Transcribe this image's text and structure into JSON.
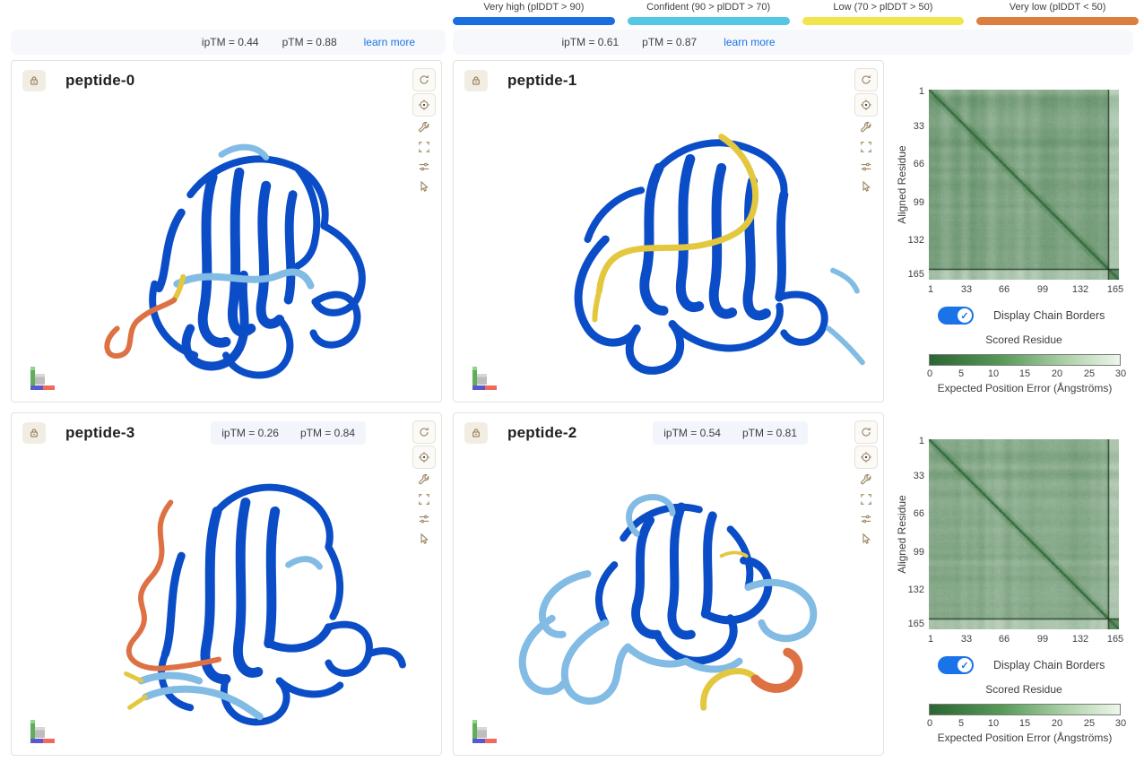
{
  "colors": {
    "plddt_very_high": "#1a6ee0",
    "plddt_confident": "#55c6e4",
    "plddt_low": "#f2e44d",
    "plddt_very_low": "#dd7e41",
    "ribbon_dark": "#0b4dc7",
    "ribbon_light": "#82bbe4",
    "ribbon_orange": "#dd7143",
    "ribbon_yellow": "#e3c83f",
    "link_blue": "#1a73e8",
    "toggle_blue": "#1a73e8",
    "icon_tan": "#9b8763",
    "pae_dark_green": "#2b6633",
    "pae_light_green": "#eef6ec"
  },
  "legend": {
    "items": [
      {
        "label": "Very high (plDDT > 90)",
        "color": "#1a6ee0"
      },
      {
        "label": "Confident (90 > plDDT > 70)",
        "color": "#55c6e4"
      },
      {
        "label": "Low (70 > plDDT > 50)",
        "color": "#f2e44d"
      },
      {
        "label": "Very low (plDDT < 50)",
        "color": "#dd7e41"
      }
    ]
  },
  "score_bars": [
    {
      "iptm": "ipTM = 0.44",
      "ptm": "pTM = 0.88",
      "link": "learn more"
    },
    {
      "iptm": "ipTM = 0.61",
      "ptm": "pTM = 0.87",
      "link": "learn more"
    }
  ],
  "panels": [
    {
      "title": "peptide-0"
    },
    {
      "title": "peptide-1"
    },
    {
      "title": "peptide-3",
      "iptm": "ipTM = 0.26",
      "ptm": "pTM = 0.84"
    },
    {
      "title": "peptide-2",
      "iptm": "ipTM = 0.54",
      "ptm": "pTM = 0.81"
    }
  ],
  "icons": {
    "lock": "lock glyph (tan), panel pin/lock chip",
    "reset_view": "circular-arrows refresh",
    "center_view": "circle with center dot",
    "wrench": "wrench tool",
    "fullscreen": "corner brackets expand",
    "sliders": "settings sliders rows",
    "pointer": "selection cursor arrow",
    "toggle_check": "✓"
  },
  "pae": {
    "ylabel": "Aligned Residue",
    "xlabel": "Scored Residue",
    "toggle_label": "Display Chain Borders",
    "toggle_on": true,
    "axis_ticks": [
      "1",
      "33",
      "66",
      "99",
      "132",
      "165"
    ],
    "colorbar_ticks": [
      "0",
      "5",
      "10",
      "15",
      "20",
      "25",
      "30"
    ],
    "colorbar_label": "Expected Position Error (Ångströms)"
  },
  "chart_data": [
    {
      "type": "heatmap",
      "position": "top-right",
      "title": "Predicted Aligned Error matrix",
      "xlabel": "Scored Residue",
      "ylabel": "Aligned Residue",
      "n_residues": 165,
      "x_ticks": [
        1,
        33,
        66,
        99,
        132,
        165
      ],
      "y_ticks": [
        1,
        33,
        66,
        99,
        132,
        165
      ],
      "value_label": "Expected Position Error (Ångströms)",
      "value_range": [
        0,
        30
      ],
      "colormap": "dark green (0 Å) → pale green (30 Å)",
      "chain_border_residue": 155,
      "display_chain_borders": true,
      "pattern": "mostly low error ~4-10 Å (mid/dark green) over protein residues 1-155 with a near-zero dark diagonal; lighter horizontal/vertical streaks around residues ~10, ~42, ~118, ~132; pale high-error band ~15-27 Å for peptide residues 156-165 (bottom row band and right column band) separated by dark chain-border lines"
    },
    {
      "type": "heatmap",
      "position": "bottom-right",
      "title": "Predicted Aligned Error matrix",
      "xlabel": "Scored Residue",
      "ylabel": "Aligned Residue",
      "n_residues": 165,
      "x_ticks": [
        1,
        33,
        66,
        99,
        132,
        165
      ],
      "y_ticks": [
        1,
        33,
        66,
        99,
        132,
        165
      ],
      "value_label": "Expected Position Error (Ångströms)",
      "value_range": [
        0,
        30
      ],
      "colormap": "dark green (0 Å) → pale green (30 Å)",
      "chain_border_residue": 155,
      "display_chain_borders": true,
      "pattern": "similar to top matrix but slightly lighter/more textured ~5-12 Å; dark low-error diagonal; pale peptide band for residues 156-165 with dark chain-border lines"
    }
  ]
}
